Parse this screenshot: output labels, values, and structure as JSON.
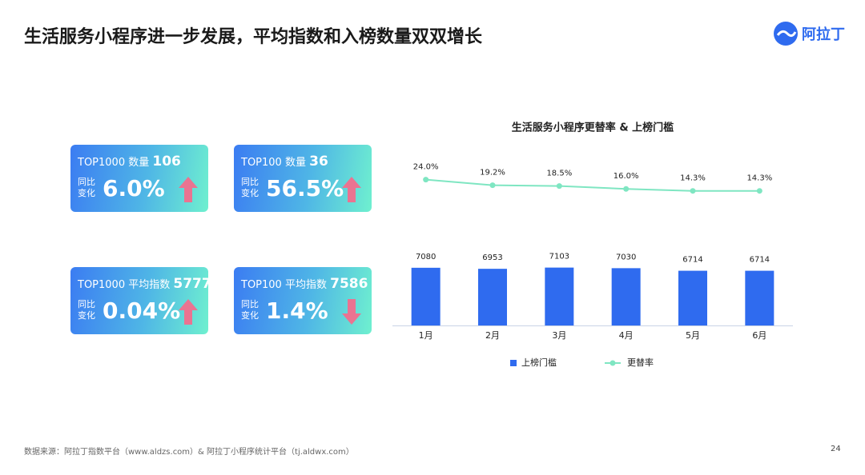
{
  "header": {
    "title": "生活服务小程序进一步发展，平均指数和入榜数量双双增长",
    "logo": "阿拉丁"
  },
  "cards": [
    {
      "label": "TOP1000 数量",
      "value": "106",
      "change_label": [
        "同比",
        "变化"
      ],
      "change": "6.0%",
      "trend": "up"
    },
    {
      "label": "TOP100 数量",
      "value": "36",
      "change_label": [
        "同比",
        "变化"
      ],
      "change": "56.5%",
      "trend": "up"
    },
    {
      "label": "TOP1000 平均指数",
      "value": "5777",
      "change_label": [
        "同比",
        "变化"
      ],
      "change": "0.04%",
      "trend": "up"
    },
    {
      "label": "TOP100 平均指数",
      "value": "7586",
      "change_label": [
        "同比",
        "变化"
      ],
      "change": "1.4%",
      "trend": "down"
    }
  ],
  "chart_data": {
    "type": "bar",
    "title": "生活服务小程序更替率 & 上榜门槛",
    "categories": [
      "1月",
      "2月",
      "3月",
      "4月",
      "5月",
      "6月"
    ],
    "series": [
      {
        "name": "上榜门槛",
        "type": "bar",
        "color": "#2f6bef",
        "values": [
          7080,
          6953,
          7103,
          7030,
          6714,
          6714
        ]
      },
      {
        "name": "更替率",
        "type": "line",
        "axis": "y2",
        "color": "#7fe6c2",
        "values": [
          24.0,
          19.2,
          18.5,
          16.0,
          14.3,
          14.3
        ],
        "value_labels": [
          "24.0%",
          "19.2%",
          "18.5%",
          "16.0%",
          "14.3%",
          "14.3%"
        ]
      }
    ],
    "ylim": [
      0,
      10500
    ],
    "y2lim": [
      -28,
      41
    ],
    "legend": "bottom"
  },
  "footer": {
    "source": "数据来源：阿拉丁指数平台（www.aldzs.com）& 阿拉丁小程序统计平台（tj.aldwx.com）",
    "page": "24"
  }
}
